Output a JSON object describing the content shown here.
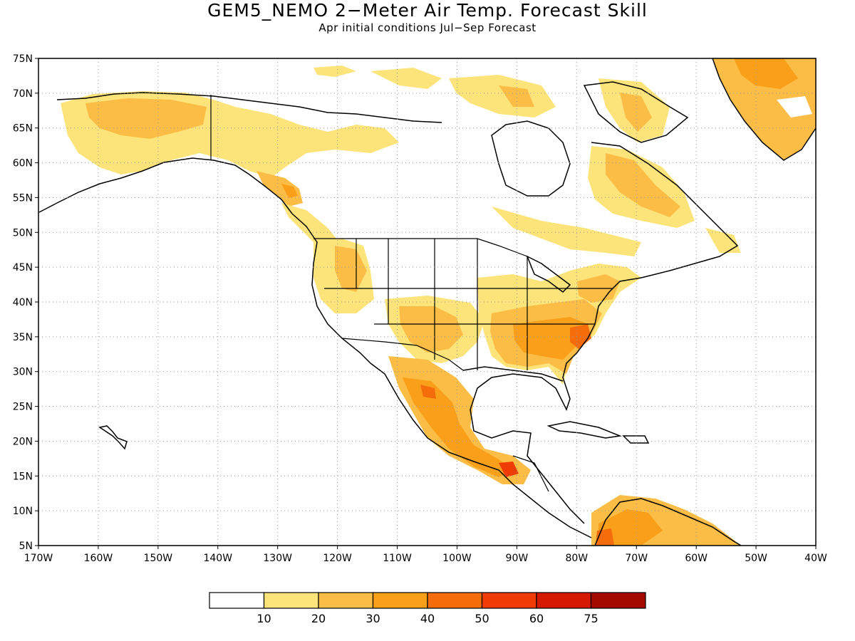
{
  "title": "GEM5_NEMO 2−Meter Air Temp. Forecast Skill",
  "subtitle": "Apr initial conditions  Jul−Sep Forecast",
  "map": {
    "lon_range": [
      -170,
      -40
    ],
    "lat_range": [
      5,
      75
    ],
    "lat_ticks": [
      "75N",
      "70N",
      "65N",
      "60N",
      "55N",
      "50N",
      "45N",
      "40N",
      "35N",
      "30N",
      "25N",
      "20N",
      "15N",
      "10N",
      "5N"
    ],
    "lon_ticks": [
      "170W",
      "160W",
      "150W",
      "140W",
      "130W",
      "120W",
      "110W",
      "100W",
      "90W",
      "80W",
      "70W",
      "60W",
      "50W",
      "40W"
    ],
    "grid": "dotted"
  },
  "colorbar": {
    "colors": [
      "#ffffff",
      "#fde47a",
      "#fbbd45",
      "#f99f1a",
      "#f46d0a",
      "#ef3b04",
      "#d61a02",
      "#a50a00"
    ],
    "labels": [
      "10",
      "20",
      "30",
      "40",
      "50",
      "60",
      "75"
    ]
  },
  "colors": {
    "land_line": "#000000",
    "grid": "#9a9a9a"
  }
}
